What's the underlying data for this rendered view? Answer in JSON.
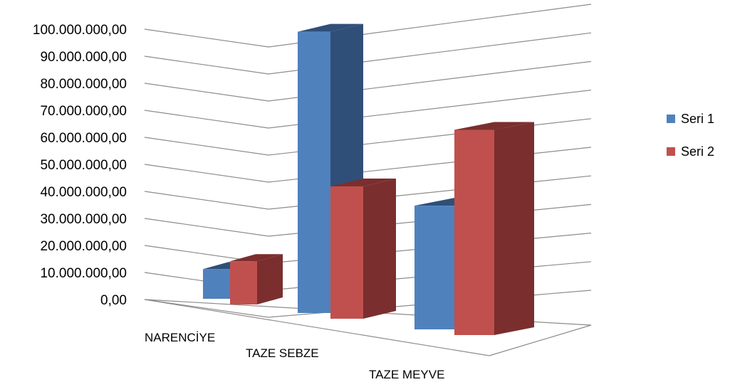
{
  "chart_data": {
    "type": "bar",
    "categories": [
      "NARENCİYE",
      "TAZE SEBZE",
      "TAZE MEYVE"
    ],
    "series": [
      {
        "name": "Seri 1",
        "values": [
          11000000,
          102000000,
          44000000
        ],
        "color": "#4F81BD",
        "side_color": "#2F4F78"
      },
      {
        "name": "Seri 2",
        "values": [
          16000000,
          48000000,
          73000000
        ],
        "color": "#C0504D",
        "side_color": "#7B2E2E"
      }
    ],
    "y_ticks": [
      "0,00",
      "10.000.000,00",
      "20.000.000,00",
      "30.000.000,00",
      "40.000.000,00",
      "50.000.000,00",
      "60.000.000,00",
      "70.000.000,00",
      "80.000.000,00",
      "90.000.000,00",
      "100.000.000,00"
    ],
    "ylim": [
      0,
      100000000
    ],
    "title": "",
    "xlabel": "",
    "ylabel": "",
    "grid": true,
    "legend_position": "right",
    "style": "3d-clustered-column"
  }
}
